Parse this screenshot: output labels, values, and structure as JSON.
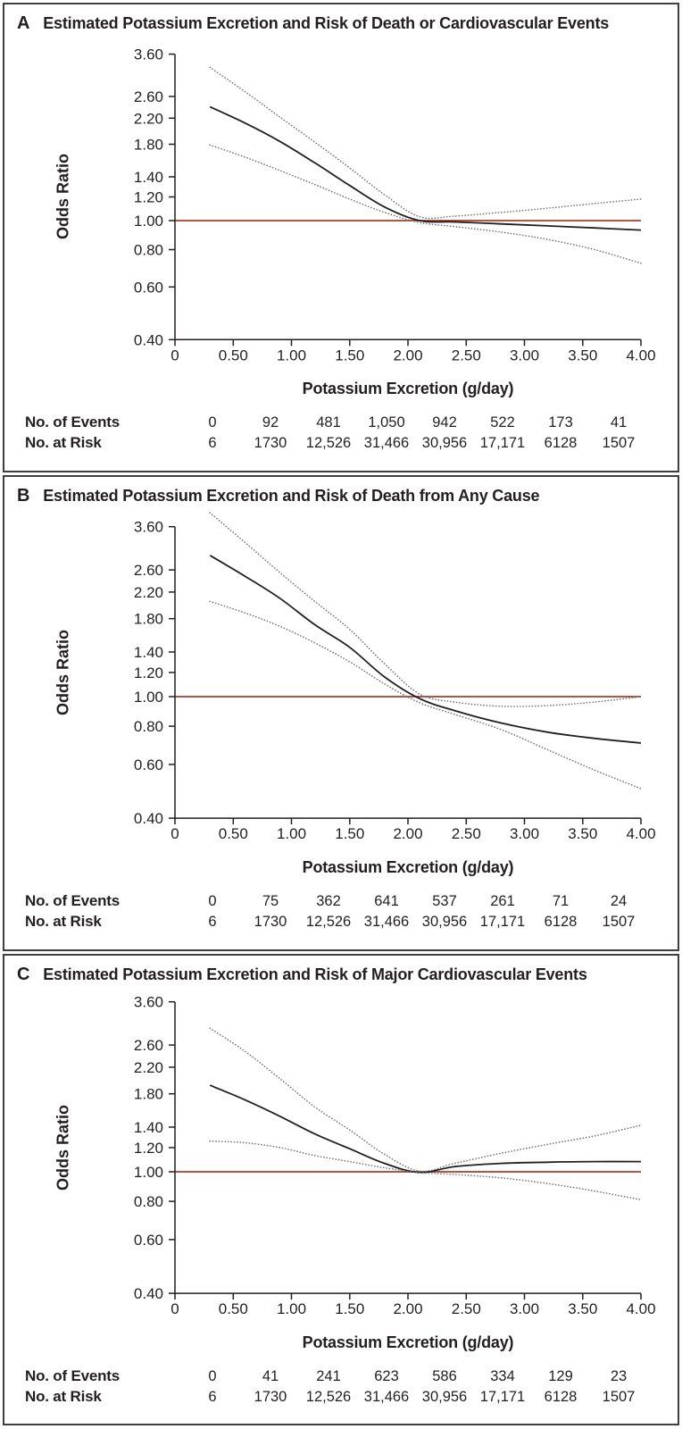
{
  "figure": {
    "x_axis_label": "Potassium Excretion (g/day)",
    "y_axis_label": "Odds Ratio",
    "events_row_label": "No. of Events",
    "risk_row_label": "No. at Risk",
    "x_ticks": [
      [
        "0",
        0
      ],
      [
        "0.50",
        0.5
      ],
      [
        "1.00",
        1.0
      ],
      [
        "1.50",
        1.5
      ],
      [
        "2.00",
        2.0
      ],
      [
        "2.50",
        2.5
      ],
      [
        "3.00",
        3.0
      ],
      [
        "3.50",
        3.5
      ],
      [
        "4.00",
        4.0
      ]
    ],
    "y_ticks": [
      [
        "3.60",
        3.6
      ],
      [
        "2.60",
        2.6
      ],
      [
        "2.20",
        2.2
      ],
      [
        "1.80",
        1.8
      ],
      [
        "1.40",
        1.4
      ],
      [
        "1.20",
        1.2
      ],
      [
        "1.00",
        1.0
      ],
      [
        "0.80",
        0.8
      ],
      [
        "0.60",
        0.6
      ],
      [
        "0.40",
        0.4
      ]
    ]
  },
  "colors": {
    "text": "#231f20",
    "curve": "#231f20",
    "ci_dotted": "#6f6f6f",
    "reference_red": "#a93b2f",
    "panel_border": "#3f3f3f"
  },
  "chart_data": [
    {
      "type": "line",
      "letter": "A",
      "title": "Estimated Potassium Excretion and Risk of Death or Cardiovascular Events",
      "xlabel": "Potassium Excretion (g/day)",
      "ylabel": "Odds Ratio",
      "x_range": [
        0,
        4
      ],
      "y_range": [
        0.4,
        3.6
      ],
      "y_scale": "log",
      "reference_line": 1.0,
      "series": [
        {
          "name": "odds_ratio",
          "style": "solid",
          "points": [
            [
              0.3,
              2.4
            ],
            [
              0.6,
              2.12
            ],
            [
              0.9,
              1.84
            ],
            [
              1.2,
              1.56
            ],
            [
              1.5,
              1.31
            ],
            [
              1.8,
              1.11
            ],
            [
              2.1,
              1.0
            ],
            [
              2.4,
              0.99
            ],
            [
              2.8,
              0.975
            ],
            [
              3.2,
              0.96
            ],
            [
              3.6,
              0.945
            ],
            [
              4.0,
              0.93
            ]
          ]
        },
        {
          "name": "upper_95_ci",
          "style": "dotted",
          "points": [
            [
              0.3,
              3.25
            ],
            [
              0.6,
              2.7
            ],
            [
              0.9,
              2.22
            ],
            [
              1.2,
              1.83
            ],
            [
              1.5,
              1.5
            ],
            [
              1.8,
              1.22
            ],
            [
              2.1,
              1.03
            ],
            [
              2.4,
              1.035
            ],
            [
              2.8,
              1.065
            ],
            [
              3.2,
              1.1
            ],
            [
              3.6,
              1.14
            ],
            [
              4.0,
              1.18
            ]
          ]
        },
        {
          "name": "lower_95_ci",
          "style": "dotted",
          "points": [
            [
              0.3,
              1.79
            ],
            [
              0.6,
              1.63
            ],
            [
              0.9,
              1.47
            ],
            [
              1.2,
              1.32
            ],
            [
              1.5,
              1.18
            ],
            [
              1.8,
              1.065
            ],
            [
              2.1,
              0.985
            ],
            [
              2.4,
              0.955
            ],
            [
              2.8,
              0.915
            ],
            [
              3.2,
              0.865
            ],
            [
              3.6,
              0.8
            ],
            [
              4.0,
              0.72
            ]
          ]
        }
      ],
      "events": [
        "0",
        "92",
        "481",
        "1,050",
        "942",
        "522",
        "173",
        "41"
      ],
      "at_risk": [
        "6",
        "1730",
        "12,526",
        "31,466",
        "30,956",
        "17,171",
        "6128",
        "1507"
      ]
    },
    {
      "type": "line",
      "letter": "B",
      "title": "Estimated Potassium Excretion and Risk of Death from Any Cause",
      "xlabel": "Potassium Excretion (g/day)",
      "ylabel": "Odds Ratio",
      "x_range": [
        0,
        4
      ],
      "y_range": [
        0.4,
        3.6
      ],
      "y_scale": "log",
      "reference_line": 1.0,
      "series": [
        {
          "name": "odds_ratio",
          "style": "solid",
          "points": [
            [
              0.3,
              2.9
            ],
            [
              0.6,
              2.48
            ],
            [
              0.9,
              2.1
            ],
            [
              1.2,
              1.72
            ],
            [
              1.5,
              1.45
            ],
            [
              1.8,
              1.16
            ],
            [
              2.1,
              0.985
            ],
            [
              2.4,
              0.9
            ],
            [
              2.8,
              0.82
            ],
            [
              3.2,
              0.765
            ],
            [
              3.6,
              0.73
            ],
            [
              4.0,
              0.705
            ]
          ]
        },
        {
          "name": "upper_95_ci",
          "style": "dotted",
          "points": [
            [
              0.3,
              4.0
            ],
            [
              0.6,
              3.2
            ],
            [
              0.9,
              2.55
            ],
            [
              1.2,
              2.05
            ],
            [
              1.5,
              1.66
            ],
            [
              1.8,
              1.28
            ],
            [
              2.1,
              1.02
            ],
            [
              2.4,
              0.96
            ],
            [
              2.8,
              0.93
            ],
            [
              3.2,
              0.935
            ],
            [
              3.6,
              0.96
            ],
            [
              4.0,
              1.0
            ]
          ]
        },
        {
          "name": "lower_95_ci",
          "style": "dotted",
          "points": [
            [
              0.3,
              2.05
            ],
            [
              0.6,
              1.88
            ],
            [
              0.9,
              1.7
            ],
            [
              1.2,
              1.5
            ],
            [
              1.5,
              1.3
            ],
            [
              1.8,
              1.1
            ],
            [
              2.1,
              0.955
            ],
            [
              2.4,
              0.875
            ],
            [
              2.8,
              0.78
            ],
            [
              3.2,
              0.67
            ],
            [
              3.6,
              0.575
            ],
            [
              4.0,
              0.5
            ]
          ]
        }
      ],
      "events": [
        "0",
        "75",
        "362",
        "641",
        "537",
        "261",
        "71",
        "24"
      ],
      "at_risk": [
        "6",
        "1730",
        "12,526",
        "31,466",
        "30,956",
        "17,171",
        "6128",
        "1507"
      ]
    },
    {
      "type": "line",
      "letter": "C",
      "title": "Estimated Potassium Excretion and Risk of Major Cardiovascular Events",
      "xlabel": "Potassium Excretion (g/day)",
      "ylabel": "Odds Ratio",
      "x_range": [
        0,
        4
      ],
      "y_range": [
        0.4,
        3.6
      ],
      "y_scale": "log",
      "reference_line": 1.0,
      "series": [
        {
          "name": "odds_ratio",
          "style": "solid",
          "points": [
            [
              0.3,
              1.92
            ],
            [
              0.6,
              1.72
            ],
            [
              0.9,
              1.52
            ],
            [
              1.2,
              1.33
            ],
            [
              1.5,
              1.19
            ],
            [
              1.8,
              1.065
            ],
            [
              2.1,
              0.995
            ],
            [
              2.4,
              1.04
            ],
            [
              2.8,
              1.065
            ],
            [
              3.2,
              1.075
            ],
            [
              3.6,
              1.08
            ],
            [
              4.0,
              1.08
            ]
          ]
        },
        {
          "name": "upper_95_ci",
          "style": "dotted",
          "points": [
            [
              0.3,
              2.95
            ],
            [
              0.6,
              2.48
            ],
            [
              0.9,
              2.02
            ],
            [
              1.2,
              1.63
            ],
            [
              1.5,
              1.37
            ],
            [
              1.8,
              1.14
            ],
            [
              2.1,
              1.005
            ],
            [
              2.4,
              1.065
            ],
            [
              2.8,
              1.15
            ],
            [
              3.2,
              1.23
            ],
            [
              3.6,
              1.31
            ],
            [
              4.0,
              1.42
            ]
          ]
        },
        {
          "name": "lower_95_ci",
          "style": "dotted",
          "points": [
            [
              0.3,
              1.26
            ],
            [
              0.6,
              1.245
            ],
            [
              0.9,
              1.2
            ],
            [
              1.2,
              1.13
            ],
            [
              1.5,
              1.08
            ],
            [
              1.8,
              1.03
            ],
            [
              2.1,
              0.995
            ],
            [
              2.4,
              0.98
            ],
            [
              2.8,
              0.955
            ],
            [
              3.2,
              0.915
            ],
            [
              3.6,
              0.865
            ],
            [
              4.0,
              0.81
            ]
          ]
        }
      ],
      "events": [
        "0",
        "41",
        "241",
        "623",
        "586",
        "334",
        "129",
        "23"
      ],
      "at_risk": [
        "6",
        "1730",
        "12,526",
        "31,466",
        "30,956",
        "17,171",
        "6128",
        "1507"
      ]
    }
  ]
}
